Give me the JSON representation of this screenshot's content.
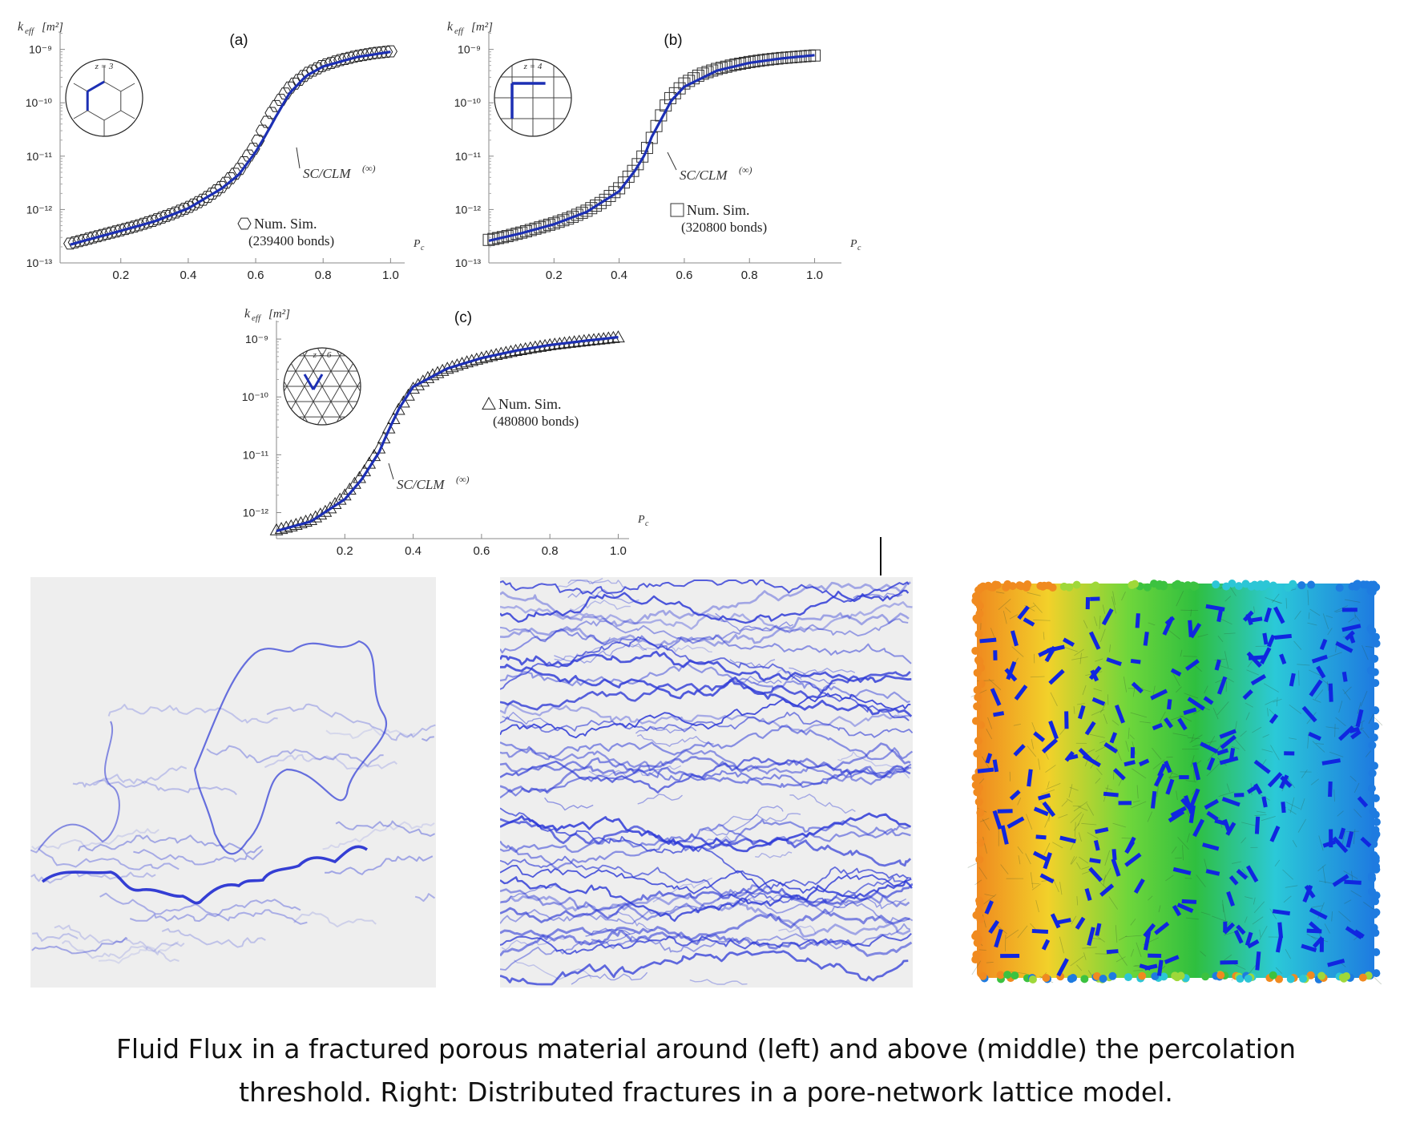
{
  "chart_data": [
    {
      "type": "scatter",
      "panel_label": "(a)",
      "ylabel": "k_eff[m²]",
      "ylabel_main": "k",
      "ylabel_sub": "eff",
      "ylabel_unit": "[m²]",
      "xlabel": "Pc",
      "xlabel_main": "P",
      "xlabel_sub": "c",
      "xlim": [
        0.02,
        1.03
      ],
      "ylim_log10": [
        -13,
        -8.75
      ],
      "xticks": [
        "0.2",
        "0.4",
        "0.6",
        "0.8",
        "1.0"
      ],
      "yticks": [
        "10⁻¹³",
        "10⁻¹²",
        "10⁻¹¹",
        "10⁻¹⁰",
        "10⁻⁹"
      ],
      "y_scale": "log",
      "series": [
        {
          "name": "Num. Sim.",
          "marker": "hexagon",
          "x": [
            0.05,
            0.1,
            0.15,
            0.2,
            0.25,
            0.3,
            0.35,
            0.4,
            0.45,
            0.5,
            0.55,
            0.6,
            0.62,
            0.65,
            0.7,
            0.75,
            0.8,
            0.85,
            0.9,
            0.95,
            1.0
          ],
          "y": [
            2.3e-13,
            2.8e-13,
            3.4e-13,
            4.1e-13,
            5e-13,
            6.3e-13,
            8.2e-13,
            1.1e-12,
            1.6e-12,
            2.7e-12,
            5.5e-12,
            1.6e-11,
            3e-11,
            7e-11,
            1.9e-10,
            3.5e-10,
            5e-10,
            6.3e-10,
            7.5e-10,
            8.5e-10,
            9.2e-10
          ]
        },
        {
          "name": "SC/CLM(∞)",
          "marker": "line",
          "x": [
            0.05,
            0.1,
            0.2,
            0.3,
            0.4,
            0.5,
            0.55,
            0.6,
            0.63,
            0.66,
            0.7,
            0.75,
            0.8,
            0.9,
            1.0
          ],
          "y": [
            2.2e-13,
            2.7e-13,
            4e-13,
            6e-13,
            1.05e-12,
            2.5e-12,
            4.5e-12,
            1.2e-11,
            2.5e-11,
            5.5e-11,
            1.5e-10,
            3.2e-10,
            4.8e-10,
            7.2e-10,
            9e-10
          ]
        }
      ],
      "annotation": "SC/CLM",
      "annotation_sup": "(∞)",
      "legend_label": "Num. Sim.",
      "legend_count": "(239400 bonds)",
      "inset_label": "z = 3"
    },
    {
      "type": "scatter",
      "panel_label": "(b)",
      "ylabel": "k_eff[m²]",
      "ylabel_main": "k",
      "ylabel_sub": "eff",
      "ylabel_unit": "[m²]",
      "xlabel": "Pc",
      "xlabel_main": "P",
      "xlabel_sub": "c",
      "xlim": [
        0.0,
        1.07
      ],
      "ylim_log10": [
        -13,
        -8.75
      ],
      "xticks": [
        "0.2",
        "0.4",
        "0.6",
        "0.8",
        "1.0"
      ],
      "yticks": [
        "10⁻¹³",
        "10⁻¹²",
        "10⁻¹¹",
        "10⁻¹⁰",
        "10⁻⁹"
      ],
      "y_scale": "log",
      "series": [
        {
          "name": "Num. Sim.",
          "marker": "square",
          "x": [
            0.0,
            0.05,
            0.1,
            0.15,
            0.2,
            0.25,
            0.3,
            0.35,
            0.4,
            0.45,
            0.48,
            0.5,
            0.52,
            0.55,
            0.6,
            0.65,
            0.7,
            0.75,
            0.8,
            0.85,
            0.9,
            0.95,
            1.0
          ],
          "y": [
            2.7e-13,
            3.1e-13,
            3.7e-13,
            4.5e-13,
            5.5e-13,
            7e-13,
            9.5e-13,
            1.4e-12,
            2.5e-12,
            6e-12,
            1.2e-11,
            2.2e-11,
            4.5e-11,
            1.1e-10,
            2.3e-10,
            3.4e-10,
            4.3e-10,
            5.1e-10,
            5.8e-10,
            6.4e-10,
            6.9e-10,
            7.3e-10,
            7.7e-10
          ]
        },
        {
          "name": "SC/CLM(∞)",
          "marker": "line",
          "x": [
            0.0,
            0.1,
            0.2,
            0.3,
            0.4,
            0.45,
            0.48,
            0.5,
            0.53,
            0.56,
            0.6,
            0.7,
            0.8,
            0.9,
            1.0
          ],
          "y": [
            2.6e-13,
            3.6e-13,
            5.3e-13,
            9e-13,
            2.2e-12,
            5.5e-12,
            1.1e-11,
            2.3e-11,
            5e-11,
            1.1e-10,
            2e-10,
            4e-10,
            5.6e-10,
            6.8e-10,
            7.8e-10
          ]
        }
      ],
      "annotation": "SC/CLM",
      "annotation_sup": "(∞)",
      "legend_label": "Num. Sim.",
      "legend_count": "(320800 bonds)",
      "inset_label": "z = 4"
    },
    {
      "type": "scatter",
      "panel_label": "(c)",
      "ylabel": "k_eff[m²]",
      "ylabel_main": "k",
      "ylabel_sub": "eff",
      "ylabel_unit": "[m²]",
      "xlabel": "Pc",
      "xlabel_main": "P",
      "xlabel_sub": "c",
      "xlim": [
        0.0,
        1.02
      ],
      "ylim_log10": [
        -12.45,
        -8.75
      ],
      "xticks": [
        "0.2",
        "0.4",
        "0.6",
        "0.8",
        "1.0"
      ],
      "yticks": [
        "10⁻¹²",
        "10⁻¹¹",
        "10⁻¹⁰",
        "10⁻⁹"
      ],
      "y_scale": "log",
      "series": [
        {
          "name": "Num. Sim.",
          "marker": "triangle",
          "x": [
            0.0,
            0.05,
            0.1,
            0.15,
            0.2,
            0.25,
            0.3,
            0.33,
            0.36,
            0.4,
            0.45,
            0.5,
            0.55,
            0.6,
            0.65,
            0.7,
            0.75,
            0.8,
            0.85,
            0.9,
            0.95,
            1.0
          ],
          "y": [
            5e-13,
            6e-13,
            7.5e-13,
            1.1e-12,
            2e-12,
            4.5e-12,
            1.3e-11,
            3e-11,
            6.5e-11,
            1.4e-10,
            2.3e-10,
            3.1e-10,
            3.9e-10,
            4.7e-10,
            5.5e-10,
            6.3e-10,
            7.1e-10,
            7.9e-10,
            8.6e-10,
            9.3e-10,
            1e-09,
            1.08e-09
          ]
        },
        {
          "name": "SC/CLM(∞)",
          "marker": "line",
          "x": [
            0.0,
            0.1,
            0.2,
            0.25,
            0.3,
            0.33,
            0.36,
            0.4,
            0.5,
            0.6,
            0.7,
            0.8,
            0.9,
            1.0
          ],
          "y": [
            4.8e-13,
            7e-13,
            1.7e-12,
            3.8e-12,
            1.1e-11,
            2.8e-11,
            6.5e-11,
            1.5e-10,
            3.1e-10,
            4.7e-10,
            6.3e-10,
            7.9e-10,
            9.3e-10,
            1.08e-09
          ]
        }
      ],
      "annotation": "SC/CLM",
      "annotation_sup": "(∞)",
      "legend_label": "Num. Sim.",
      "legend_count": "(480800 bonds)",
      "inset_label": "z = 6"
    }
  ],
  "colors": {
    "curve": "#1c2fb4",
    "flux": "#2b37d6",
    "panel_bg": "#eeeeee",
    "fracture": "#1026e0"
  },
  "figures": {
    "left": "fluid-flux-around-threshold",
    "middle": "fluid-flux-above-threshold",
    "right": "distributed-fractures-lattice"
  },
  "caption": {
    "line1": "Fluid Flux in a fractured porous material around (left) and above (middle) the percolation",
    "line2": "threshold. Right: Distributed fractures in a pore-network lattice model."
  }
}
